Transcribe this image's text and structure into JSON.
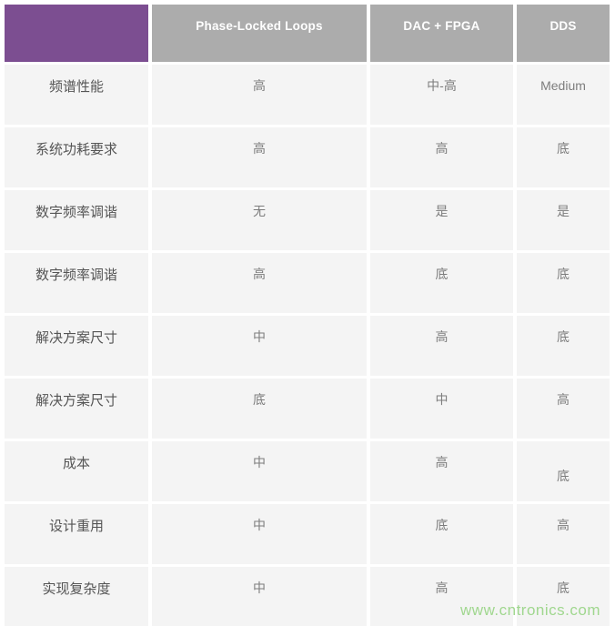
{
  "chart_data": {
    "type": "table",
    "title": "",
    "columns": [
      "",
      "Phase-Locked Loops",
      "DAC + FPGA",
      "DDS"
    ],
    "rows": [
      [
        "频谱性能",
        "高",
        "中-高",
        "Medium"
      ],
      [
        "系统功耗要求",
        "高",
        "高",
        "底"
      ],
      [
        "数字频率调谐",
        "无",
        "是",
        "是"
      ],
      [
        "数字频率调谐",
        "高",
        "底",
        "底"
      ],
      [
        "解决方案尺寸",
        "中",
        "高",
        "底"
      ],
      [
        "解决方案尺寸",
        "底",
        "中",
        "高"
      ],
      [
        "成本",
        "中",
        "高",
        "底"
      ],
      [
        "设计重用",
        "中",
        "底",
        "高"
      ],
      [
        "实现复杂度",
        "中",
        "高",
        "底"
      ]
    ],
    "layout_hints": {
      "corner_cell": "purple, empty",
      "header_style": "gray background, white bold text",
      "grid": "light gray cells separated by white gaps"
    }
  },
  "watermark": {
    "text": "www.cntronics.com"
  },
  "colors": {
    "header-purple": "#7c4e91",
    "header-gray": "#acacac",
    "row-bg": "#f4f4f4",
    "label-text": "#555555",
    "value-text": "#7d7d7d",
    "header-text": "#ffffff",
    "watermark-green": "#a0d78f",
    "page-bg": "#ffffff"
  }
}
